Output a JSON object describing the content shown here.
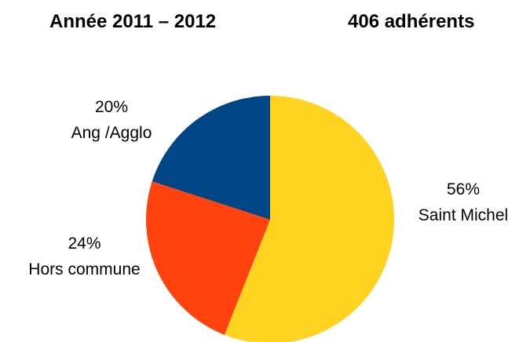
{
  "title_left": "Année 2011 – 2012",
  "title_right": "406 adhérents",
  "chart_data": {
    "type": "pie",
    "title": "Année 2011 – 2012",
    "subtitle": "406 adhérents",
    "slices": [
      {
        "label": "Saint Michel",
        "percent_label": "56%",
        "value": 56,
        "color": "#ffd320"
      },
      {
        "label": "Hors commune",
        "percent_label": "24%",
        "value": 24,
        "color": "#ff420e"
      },
      {
        "label": "Ang /Agglo",
        "percent_label": "20%",
        "value": 20,
        "color": "#004586"
      }
    ],
    "start": "12 o'clock",
    "direction": "clockwise",
    "legend": "none",
    "data_labels": "outside slices"
  }
}
